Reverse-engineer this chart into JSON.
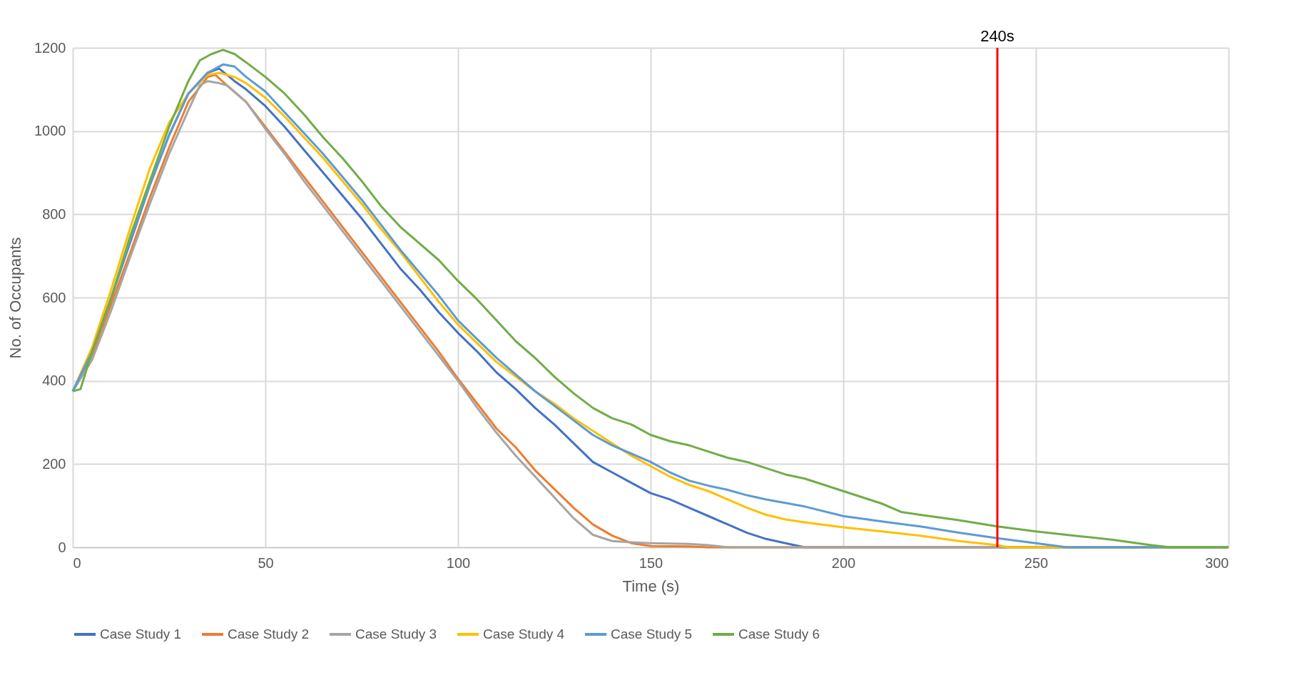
{
  "chart_data": {
    "type": "line",
    "xlabel": "Time (s)",
    "ylabel": "No. of Occupants",
    "xlim": [
      0,
      300
    ],
    "xticks": [
      0,
      50,
      100,
      150,
      200,
      250,
      300
    ],
    "ylim": [
      0,
      1200
    ],
    "yticks": [
      0,
      200,
      400,
      600,
      800,
      1000,
      1200
    ],
    "grid": true,
    "legend": "bottom",
    "marker": "none",
    "line_style": "solid",
    "ref_lines": [
      {
        "axis": "x",
        "value": 240,
        "label": "240s",
        "color": "#ff0000"
      }
    ],
    "series": [
      {
        "name": "Case Study 1",
        "color": "#4472c4",
        "x": [
          0,
          5,
          10,
          15,
          20,
          25,
          30,
          35,
          38,
          42,
          45,
          50,
          55,
          60,
          65,
          70,
          75,
          80,
          85,
          90,
          95,
          100,
          105,
          110,
          115,
          120,
          125,
          130,
          135,
          140,
          145,
          150,
          155,
          160,
          165,
          170,
          175,
          180,
          185,
          190,
          300
        ],
        "values": [
          375,
          470,
          600,
          735,
          870,
          990,
          1090,
          1140,
          1150,
          1120,
          1100,
          1060,
          1010,
          955,
          900,
          845,
          790,
          730,
          670,
          620,
          565,
          515,
          470,
          420,
          380,
          335,
          295,
          250,
          205,
          180,
          155,
          130,
          115,
          95,
          75,
          55,
          35,
          20,
          10,
          0,
          0
        ]
      },
      {
        "name": "Case Study 2",
        "color": "#ed7d31",
        "x": [
          0,
          5,
          10,
          15,
          20,
          25,
          30,
          35,
          37,
          40,
          45,
          50,
          55,
          60,
          65,
          70,
          75,
          80,
          85,
          90,
          95,
          100,
          105,
          110,
          115,
          120,
          125,
          130,
          135,
          140,
          145,
          150,
          160,
          165,
          300
        ],
        "values": [
          375,
          460,
          585,
          710,
          840,
          960,
          1070,
          1130,
          1135,
          1110,
          1070,
          1010,
          950,
          890,
          830,
          770,
          710,
          650,
          590,
          530,
          470,
          405,
          345,
          285,
          240,
          185,
          140,
          95,
          55,
          28,
          10,
          3,
          2,
          0,
          0
        ]
      },
      {
        "name": "Case Study 3",
        "color": "#a5a5a5",
        "x": [
          0,
          5,
          10,
          15,
          20,
          25,
          30,
          33,
          35,
          38,
          40,
          45,
          50,
          55,
          60,
          65,
          70,
          75,
          80,
          85,
          90,
          95,
          100,
          105,
          110,
          115,
          120,
          125,
          130,
          135,
          140,
          145,
          150,
          160,
          165,
          170,
          300
        ],
        "values": [
          375,
          450,
          570,
          700,
          825,
          945,
          1050,
          1110,
          1120,
          1115,
          1110,
          1070,
          1005,
          945,
          880,
          820,
          760,
          700,
          640,
          580,
          520,
          460,
          400,
          335,
          275,
          220,
          170,
          120,
          70,
          30,
          15,
          12,
          10,
          8,
          5,
          0,
          0
        ]
      },
      {
        "name": "Case Study 4",
        "color": "#ffc000",
        "x": [
          0,
          5,
          10,
          15,
          20,
          25,
          30,
          35,
          38,
          42,
          45,
          50,
          55,
          60,
          65,
          70,
          75,
          80,
          85,
          90,
          95,
          100,
          105,
          110,
          115,
          120,
          125,
          130,
          135,
          140,
          145,
          150,
          155,
          160,
          165,
          170,
          175,
          180,
          185,
          190,
          200,
          210,
          220,
          230,
          240,
          243,
          300
        ],
        "values": [
          375,
          480,
          620,
          770,
          910,
          1020,
          1090,
          1135,
          1140,
          1130,
          1115,
          1080,
          1035,
          985,
          935,
          880,
          825,
          765,
          710,
          650,
          590,
          535,
          490,
          445,
          410,
          375,
          345,
          310,
          280,
          250,
          220,
          195,
          170,
          150,
          135,
          115,
          95,
          78,
          67,
          60,
          48,
          38,
          28,
          15,
          5,
          0,
          0
        ]
      },
      {
        "name": "Case Study 5",
        "color": "#5b9bd5",
        "x": [
          0,
          5,
          10,
          15,
          20,
          25,
          30,
          35,
          39,
          42,
          45,
          50,
          55,
          60,
          65,
          70,
          75,
          80,
          85,
          90,
          95,
          100,
          105,
          110,
          115,
          120,
          125,
          130,
          135,
          140,
          145,
          150,
          155,
          160,
          165,
          170,
          175,
          180,
          190,
          200,
          210,
          220,
          230,
          240,
          250,
          258,
          300
        ],
        "values": [
          375,
          470,
          600,
          740,
          870,
          990,
          1090,
          1140,
          1160,
          1155,
          1130,
          1095,
          1045,
          995,
          945,
          890,
          835,
          775,
          715,
          660,
          605,
          545,
          500,
          455,
          415,
          375,
          340,
          305,
          270,
          245,
          225,
          205,
          180,
          160,
          148,
          138,
          125,
          115,
          98,
          75,
          62,
          50,
          35,
          22,
          10,
          0,
          0
        ]
      },
      {
        "name": "Case Study 6",
        "color": "#70ad47",
        "x": [
          0,
          2,
          5,
          10,
          15,
          20,
          25,
          30,
          33,
          36,
          39,
          42,
          45,
          50,
          55,
          60,
          65,
          70,
          75,
          80,
          85,
          90,
          95,
          100,
          105,
          110,
          115,
          120,
          125,
          130,
          135,
          140,
          145,
          150,
          155,
          160,
          165,
          170,
          175,
          180,
          185,
          190,
          195,
          200,
          205,
          210,
          215,
          220,
          230,
          240,
          250,
          260,
          270,
          280,
          285,
          300
        ],
        "values": [
          375,
          380,
          470,
          600,
          750,
          880,
          1010,
          1120,
          1170,
          1185,
          1195,
          1185,
          1165,
          1130,
          1090,
          1040,
          985,
          935,
          880,
          820,
          770,
          730,
          690,
          640,
          595,
          545,
          495,
          455,
          410,
          370,
          335,
          310,
          295,
          270,
          255,
          245,
          230,
          215,
          205,
          190,
          175,
          165,
          150,
          135,
          120,
          105,
          85,
          78,
          65,
          50,
          38,
          28,
          18,
          5,
          0,
          0
        ]
      }
    ]
  }
}
